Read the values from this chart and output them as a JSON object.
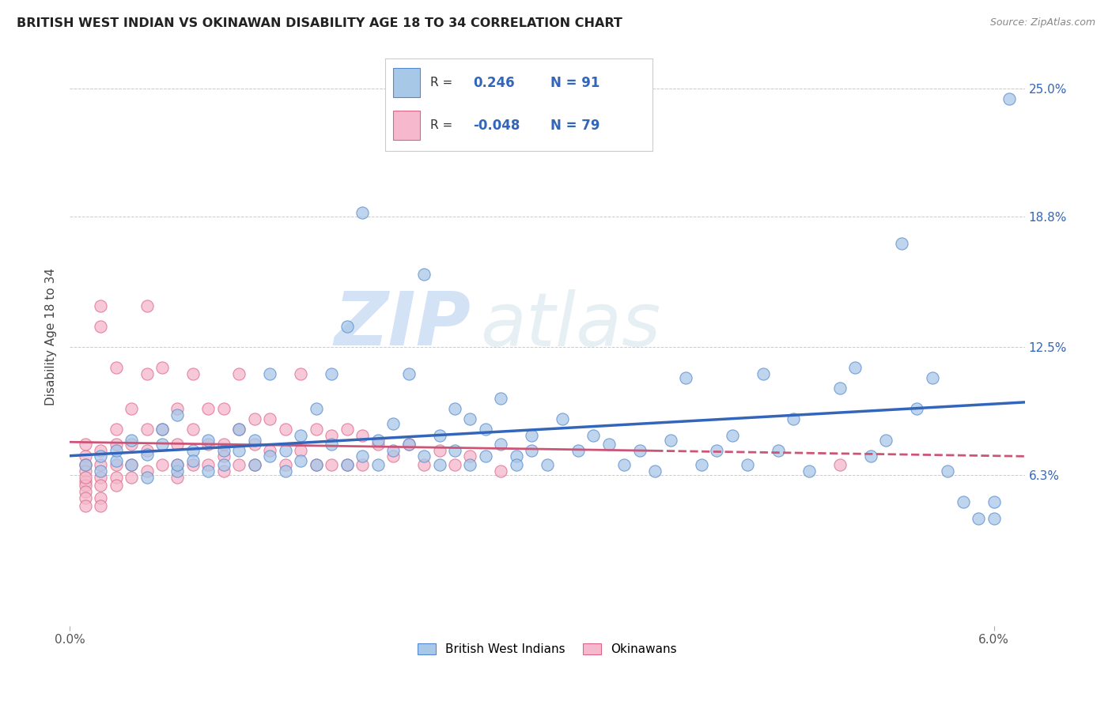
{
  "title": "BRITISH WEST INDIAN VS OKINAWAN DISABILITY AGE 18 TO 34 CORRELATION CHART",
  "source": "Source: ZipAtlas.com",
  "ylabel": "Disability Age 18 to 34",
  "xlim": [
    0.0,
    0.062
  ],
  "ylim": [
    -0.01,
    0.27
  ],
  "ytick_positions": [
    0.063,
    0.125,
    0.188,
    0.25
  ],
  "ytick_labels": [
    "6.3%",
    "12.5%",
    "18.8%",
    "25.0%"
  ],
  "r_blue": 0.246,
  "n_blue": 91,
  "r_pink": -0.048,
  "n_pink": 79,
  "blue_color": "#a8c8e8",
  "pink_color": "#f5b8cc",
  "blue_edge_color": "#5588cc",
  "pink_edge_color": "#dd6688",
  "blue_line_color": "#3366bb",
  "pink_line_color": "#cc5577",
  "watermark_color": "#c8dff0",
  "legend_blue_label": "British West Indians",
  "legend_pink_label": "Okinawans",
  "blue_scatter_x": [
    0.001,
    0.002,
    0.002,
    0.003,
    0.003,
    0.004,
    0.004,
    0.005,
    0.005,
    0.006,
    0.006,
    0.007,
    0.007,
    0.007,
    0.008,
    0.008,
    0.009,
    0.009,
    0.01,
    0.01,
    0.011,
    0.011,
    0.012,
    0.012,
    0.013,
    0.013,
    0.014,
    0.014,
    0.015,
    0.015,
    0.016,
    0.016,
    0.017,
    0.017,
    0.018,
    0.018,
    0.019,
    0.019,
    0.02,
    0.02,
    0.021,
    0.021,
    0.022,
    0.022,
    0.023,
    0.023,
    0.024,
    0.024,
    0.025,
    0.025,
    0.026,
    0.026,
    0.027,
    0.027,
    0.028,
    0.028,
    0.029,
    0.029,
    0.03,
    0.03,
    0.031,
    0.032,
    0.033,
    0.034,
    0.035,
    0.036,
    0.037,
    0.038,
    0.039,
    0.04,
    0.041,
    0.042,
    0.043,
    0.044,
    0.045,
    0.046,
    0.047,
    0.048,
    0.05,
    0.051,
    0.052,
    0.053,
    0.054,
    0.055,
    0.056,
    0.057,
    0.058,
    0.059,
    0.06,
    0.06,
    0.061
  ],
  "blue_scatter_y": [
    0.068,
    0.072,
    0.065,
    0.07,
    0.075,
    0.08,
    0.068,
    0.073,
    0.062,
    0.085,
    0.078,
    0.065,
    0.092,
    0.068,
    0.075,
    0.07,
    0.08,
    0.065,
    0.068,
    0.075,
    0.085,
    0.075,
    0.068,
    0.08,
    0.072,
    0.112,
    0.065,
    0.075,
    0.07,
    0.082,
    0.068,
    0.095,
    0.078,
    0.112,
    0.135,
    0.068,
    0.19,
    0.072,
    0.08,
    0.068,
    0.088,
    0.075,
    0.078,
    0.112,
    0.072,
    0.16,
    0.068,
    0.082,
    0.095,
    0.075,
    0.068,
    0.09,
    0.072,
    0.085,
    0.078,
    0.1,
    0.072,
    0.068,
    0.082,
    0.075,
    0.068,
    0.09,
    0.075,
    0.082,
    0.078,
    0.068,
    0.075,
    0.065,
    0.08,
    0.11,
    0.068,
    0.075,
    0.082,
    0.068,
    0.112,
    0.075,
    0.09,
    0.065,
    0.105,
    0.115,
    0.072,
    0.08,
    0.175,
    0.095,
    0.11,
    0.065,
    0.05,
    0.042,
    0.05,
    0.042,
    0.245
  ],
  "pink_scatter_x": [
    0.001,
    0.001,
    0.001,
    0.001,
    0.001,
    0.001,
    0.001,
    0.001,
    0.001,
    0.001,
    0.002,
    0.002,
    0.002,
    0.002,
    0.002,
    0.002,
    0.002,
    0.002,
    0.003,
    0.003,
    0.003,
    0.003,
    0.003,
    0.003,
    0.004,
    0.004,
    0.004,
    0.004,
    0.005,
    0.005,
    0.005,
    0.005,
    0.005,
    0.006,
    0.006,
    0.006,
    0.007,
    0.007,
    0.007,
    0.007,
    0.008,
    0.008,
    0.008,
    0.009,
    0.009,
    0.009,
    0.01,
    0.01,
    0.01,
    0.01,
    0.011,
    0.011,
    0.011,
    0.012,
    0.012,
    0.012,
    0.013,
    0.013,
    0.014,
    0.014,
    0.015,
    0.015,
    0.016,
    0.016,
    0.017,
    0.017,
    0.018,
    0.018,
    0.019,
    0.019,
    0.02,
    0.021,
    0.022,
    0.023,
    0.024,
    0.025,
    0.026,
    0.028,
    0.05
  ],
  "pink_scatter_y": [
    0.072,
    0.068,
    0.065,
    0.06,
    0.058,
    0.055,
    0.052,
    0.062,
    0.048,
    0.078,
    0.145,
    0.135,
    0.075,
    0.068,
    0.062,
    0.058,
    0.052,
    0.048,
    0.115,
    0.085,
    0.078,
    0.068,
    0.062,
    0.058,
    0.095,
    0.078,
    0.068,
    0.062,
    0.145,
    0.112,
    0.085,
    0.075,
    0.065,
    0.115,
    0.085,
    0.068,
    0.095,
    0.078,
    0.068,
    0.062,
    0.112,
    0.085,
    0.068,
    0.095,
    0.078,
    0.068,
    0.095,
    0.078,
    0.072,
    0.065,
    0.112,
    0.085,
    0.068,
    0.09,
    0.078,
    0.068,
    0.09,
    0.075,
    0.085,
    0.068,
    0.112,
    0.075,
    0.085,
    0.068,
    0.082,
    0.068,
    0.085,
    0.068,
    0.082,
    0.068,
    0.078,
    0.072,
    0.078,
    0.068,
    0.075,
    0.068,
    0.072,
    0.065,
    0.068
  ]
}
